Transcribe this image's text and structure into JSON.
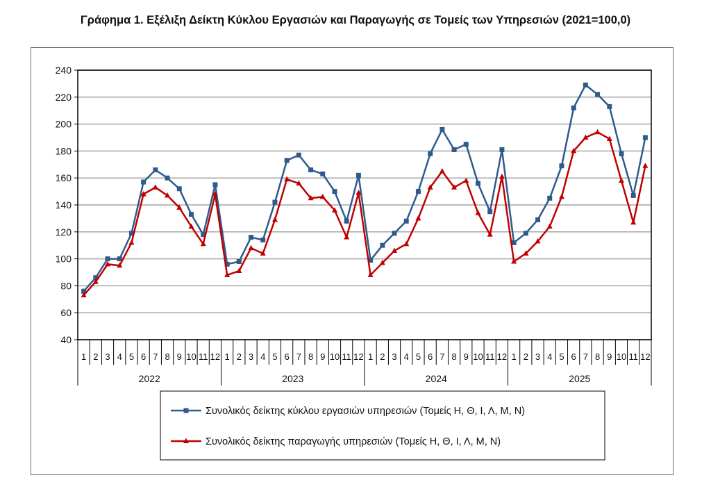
{
  "chart_data": {
    "type": "line",
    "title": "Γράφημα 1. Εξέλιξη Δείκτη Κύκλου Εργασιών και Παραγωγής σε Τομείς των Υπηρεσιών (2021=100,0)",
    "xlabel": "",
    "ylabel": "",
    "ylim": [
      40,
      240
    ],
    "yticks": [
      40,
      60,
      80,
      100,
      120,
      140,
      160,
      180,
      200,
      220,
      240
    ],
    "grid": true,
    "legend_position": "bottom",
    "years": [
      "2022",
      "2023",
      "2024",
      "2025"
    ],
    "months": [
      "1",
      "2",
      "3",
      "4",
      "5",
      "6",
      "7",
      "8",
      "9",
      "10",
      "11",
      "12"
    ],
    "series": [
      {
        "name": "Συνολικός δείκτης κύκλου εργασιών υπηρεσιών (Τομείς Η, Θ, Ι, Λ, Μ, Ν)",
        "color": "#2f5a8c",
        "marker": "square",
        "values": [
          76,
          86,
          100,
          100,
          119,
          157,
          166,
          160,
          152,
          133,
          118,
          155,
          96,
          98,
          116,
          114,
          142,
          173,
          177,
          166,
          163,
          150,
          128,
          162,
          99,
          110,
          119,
          128,
          150,
          178,
          196,
          181,
          185,
          156,
          135,
          181,
          112,
          119,
          129,
          145,
          169,
          212,
          229,
          222,
          213,
          178,
          147,
          190
        ]
      },
      {
        "name": "Συνολικός δείκτης παραγωγής υπηρεσιών (Τομείς Η, Θ, Ι, Λ, Μ, Ν)",
        "color": "#c00000",
        "marker": "triangle",
        "values": [
          73,
          83,
          96,
          95,
          112,
          148,
          153,
          147,
          138,
          124,
          111,
          148,
          88,
          91,
          108,
          104,
          129,
          159,
          156,
          145,
          146,
          136,
          116,
          149,
          88,
          97,
          106,
          111,
          130,
          153,
          165,
          153,
          158,
          134,
          118,
          161,
          98,
          104,
          113,
          124,
          146,
          180,
          190,
          194,
          189,
          158,
          127,
          169
        ]
      }
    ]
  }
}
